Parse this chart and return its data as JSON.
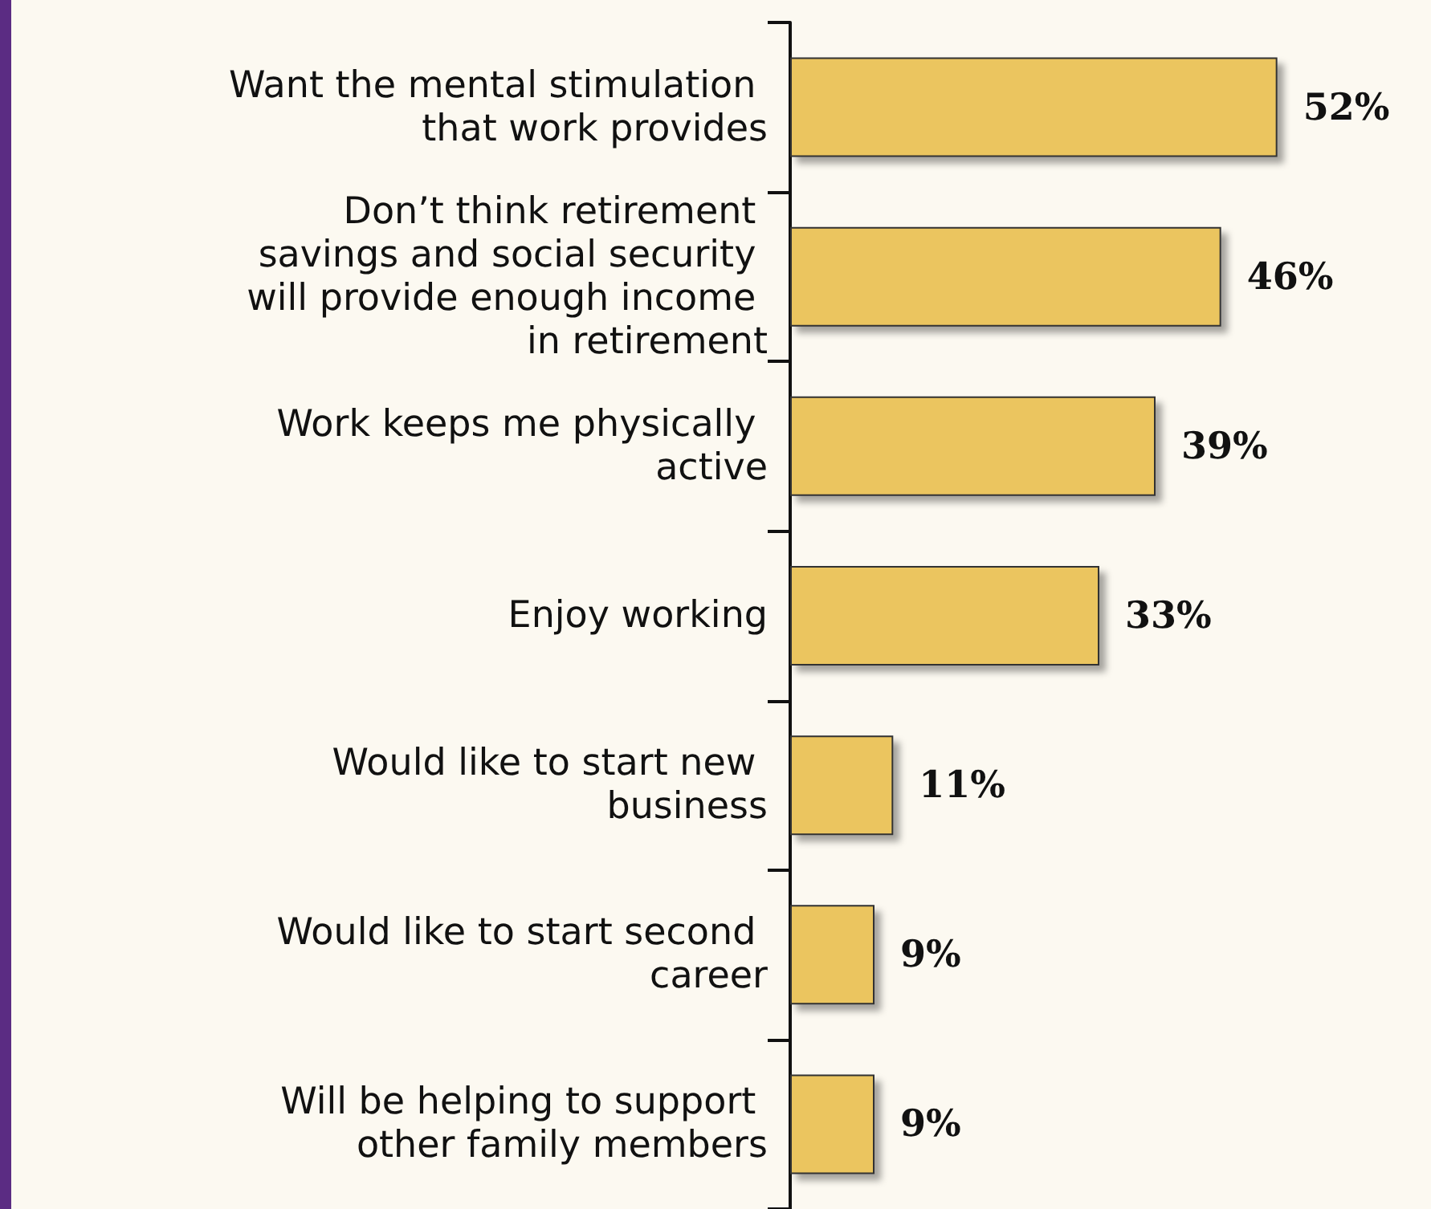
{
  "chart_data": {
    "type": "bar",
    "orientation": "horizontal",
    "categories": [
      "Want the mental stimulation that work provides",
      "Don’t think retirement savings and social security will provide enough income in retirement",
      "Work keeps me physically active",
      "Enjoy working",
      "Would like to start new business",
      "Would like to start second career",
      "Will be helping to support other family members"
    ],
    "values": [
      52,
      46,
      39,
      33,
      11,
      9,
      9
    ],
    "value_labels": [
      "52%",
      "46%",
      "39%",
      "33%",
      "11%",
      "9%",
      "9%"
    ],
    "color": "#ebc55e",
    "tick_labels": "y"
  }
}
